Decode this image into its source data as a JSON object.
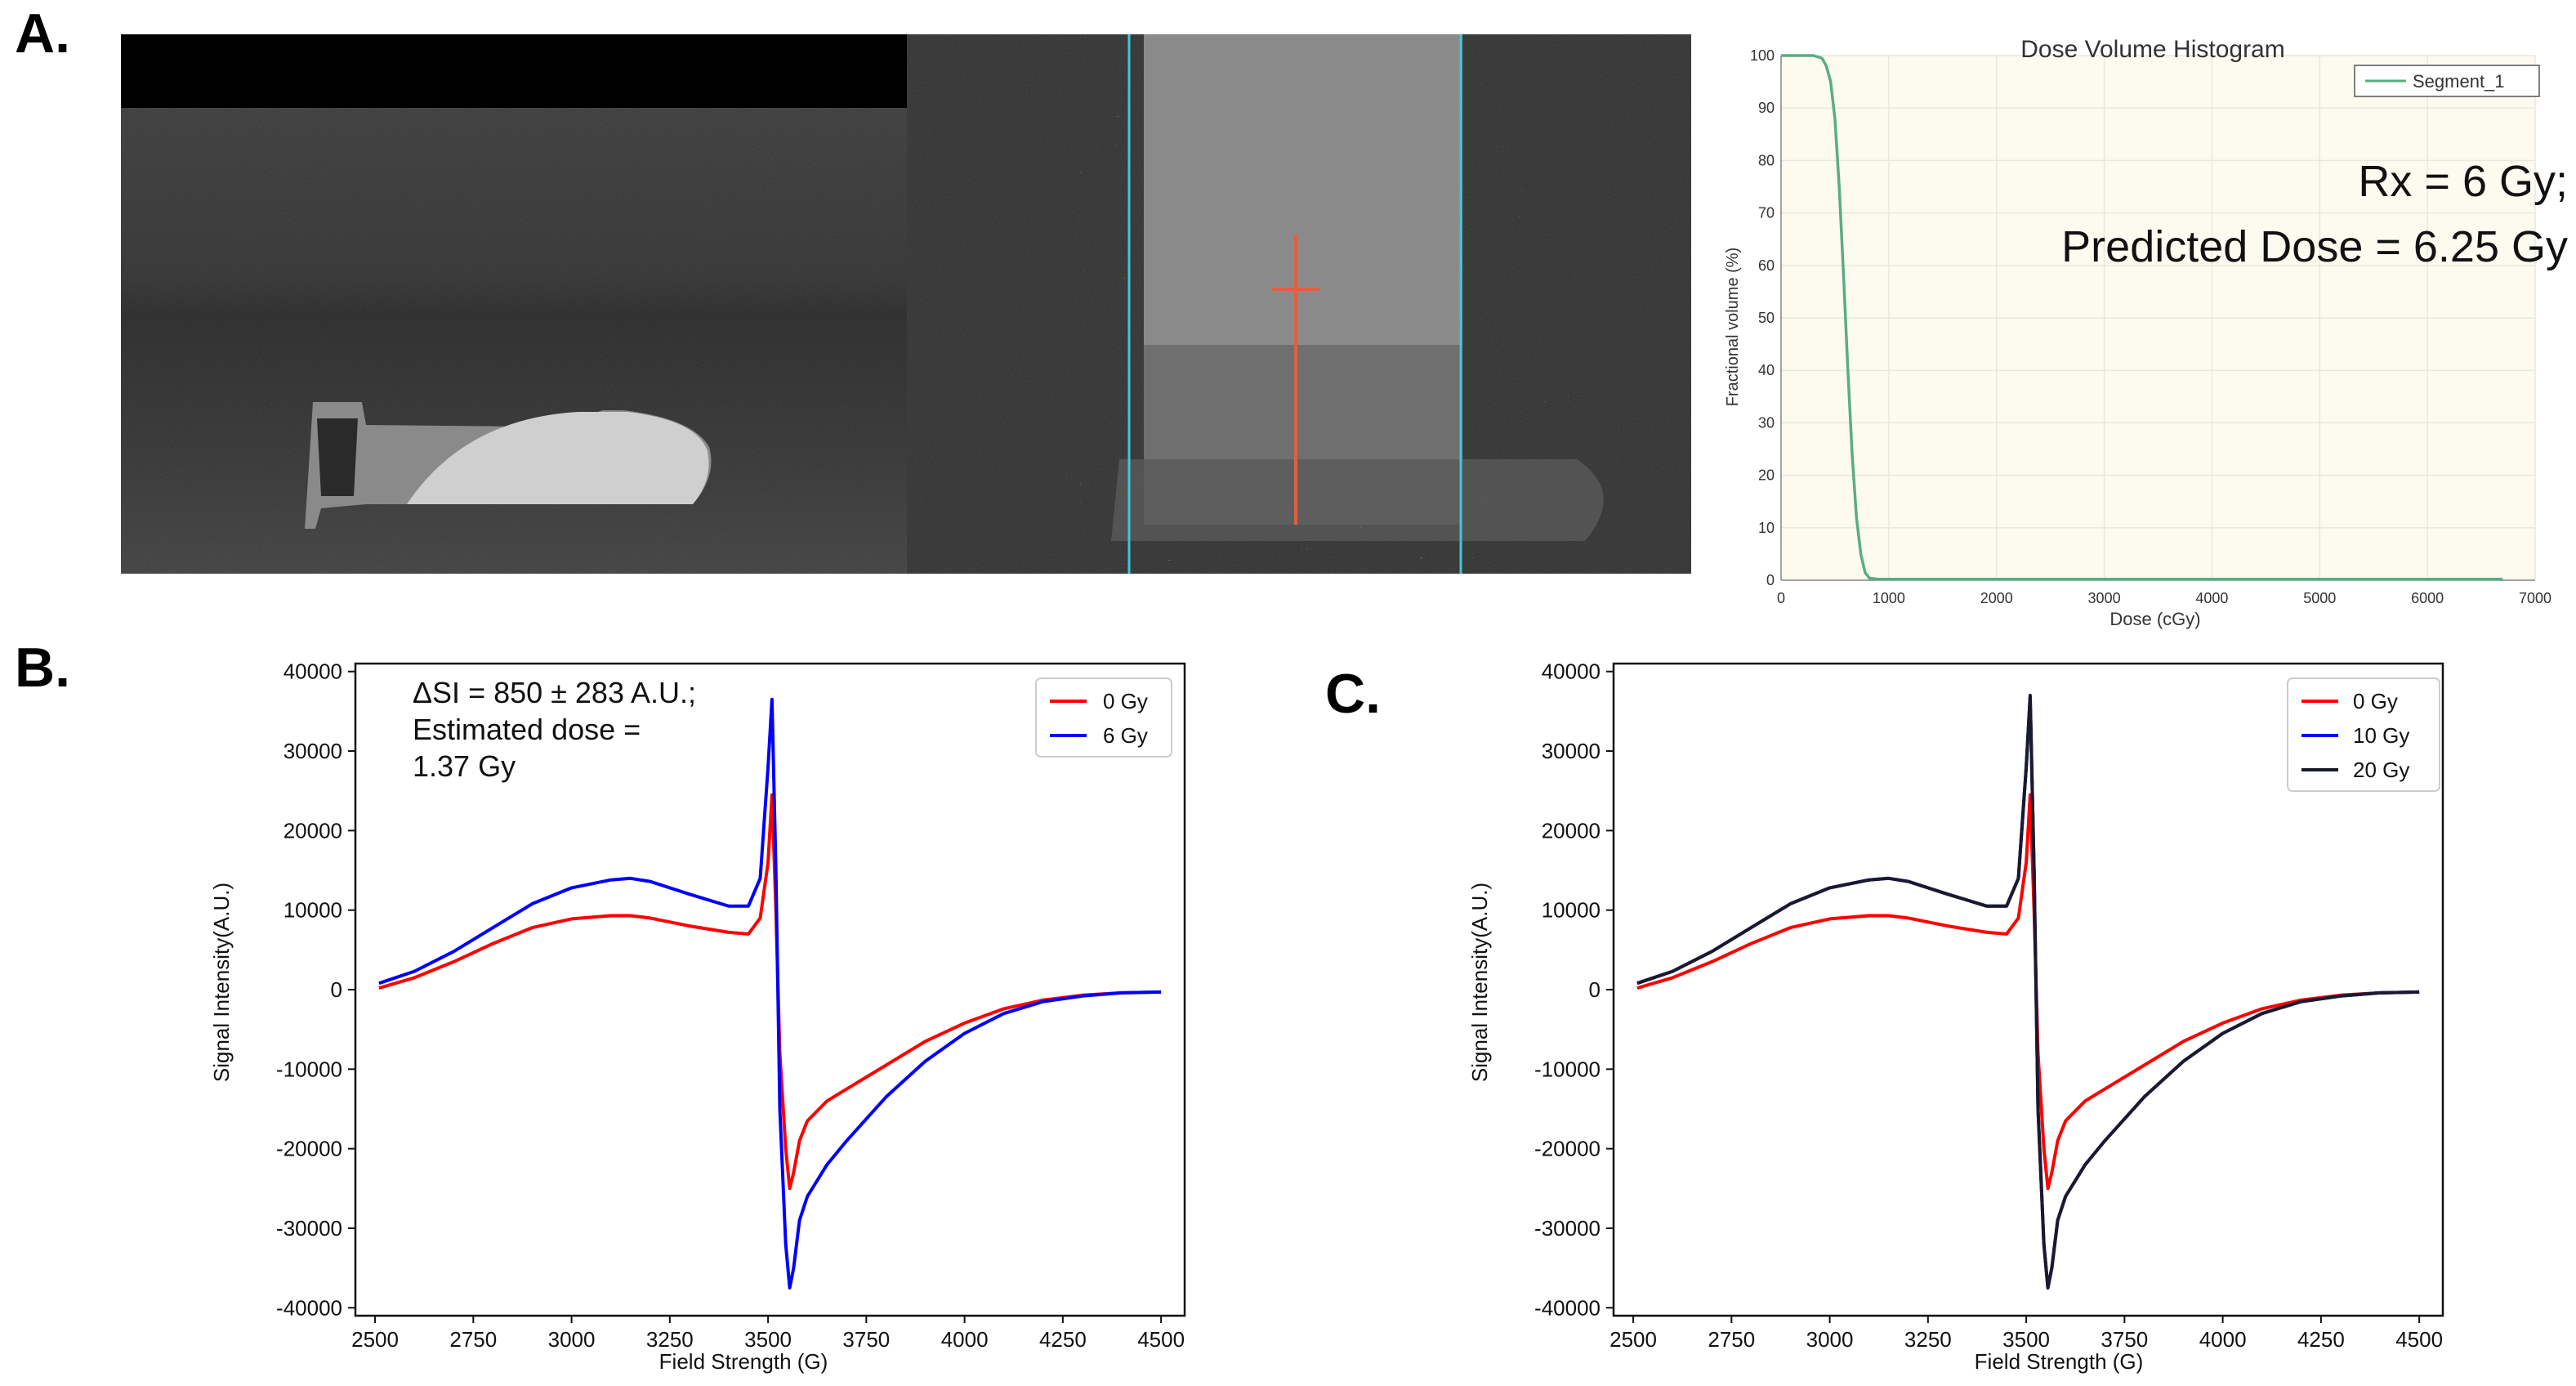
{
  "panels": {
    "a": "A.",
    "b": "B.",
    "c": "C."
  },
  "dvh": {
    "title": "Dose Volume Histogram",
    "xlabel": "Dose (cGy)",
    "ylabel": "Fractional volume (%)",
    "legend": "Segment_1",
    "note_line1": "Rx = 6 Gy;",
    "note_line2": "Predicted Dose = 6.25 Gy",
    "color": "#5aad82"
  },
  "mri": {
    "crosshair_color": "#e06040"
  },
  "chart_data": [
    {
      "id": "dvh",
      "type": "line",
      "title": "Dose Volume Histogram",
      "xlabel": "Dose (cGy)",
      "ylabel": "Fractional volume (%)",
      "xlim": [
        0,
        7000
      ],
      "ylim": [
        0,
        100
      ],
      "xticks": [
        0,
        1000,
        2000,
        3000,
        4000,
        5000,
        6000,
        7000
      ],
      "yticks": [
        0,
        10,
        20,
        30,
        40,
        50,
        60,
        70,
        80,
        90,
        100
      ],
      "series": [
        {
          "name": "Segment_1",
          "x": [
            0,
            300,
            380,
            420,
            460,
            500,
            540,
            580,
            620,
            660,
            700,
            740,
            780,
            820,
            900,
            1500,
            3000,
            5000,
            6700
          ],
          "y": [
            100,
            100,
            99.5,
            98,
            95,
            88,
            75,
            58,
            40,
            24,
            12,
            5,
            1.5,
            0.4,
            0.2,
            0.2,
            0.2,
            0.2,
            0.2
          ]
        }
      ]
    },
    {
      "id": "B",
      "type": "line",
      "xlabel": "Field Strength (G)",
      "ylabel": "Signal Intensity(A.U.)",
      "xlim": [
        2450,
        4560
      ],
      "ylim": [
        -41000,
        41000
      ],
      "xticks": [
        2500,
        2750,
        3000,
        3250,
        3500,
        3750,
        4000,
        4250,
        4500
      ],
      "yticks": [
        -40000,
        -30000,
        -20000,
        -10000,
        0,
        10000,
        20000,
        30000,
        40000
      ],
      "annotation": [
        "ΔSI  = 850 ± 283 A.U.;",
        "Estimated dose =",
        "1.37 Gy"
      ],
      "series": [
        {
          "name": "0 Gy",
          "color": "#ff0000",
          "x": [
            2510,
            2600,
            2700,
            2800,
            2900,
            3000,
            3100,
            3150,
            3200,
            3300,
            3400,
            3450,
            3480,
            3500,
            3510,
            3520,
            3530,
            3545,
            3555,
            3565,
            3580,
            3600,
            3650,
            3700,
            3800,
            3900,
            4000,
            4100,
            4200,
            4300,
            4400,
            4500
          ],
          "y": [
            200,
            1500,
            3500,
            5800,
            7800,
            8900,
            9300,
            9300,
            9000,
            8000,
            7200,
            7000,
            9000,
            16000,
            24500,
            10000,
            -8000,
            -20000,
            -25000,
            -23000,
            -19000,
            -16500,
            -14000,
            -12500,
            -9500,
            -6500,
            -4200,
            -2400,
            -1300,
            -700,
            -400,
            -300
          ]
        },
        {
          "name": "6 Gy",
          "color": "#0000ff",
          "x": [
            2510,
            2600,
            2700,
            2800,
            2900,
            3000,
            3100,
            3150,
            3200,
            3300,
            3400,
            3450,
            3480,
            3500,
            3510,
            3520,
            3530,
            3545,
            3555,
            3565,
            3580,
            3600,
            3650,
            3700,
            3800,
            3900,
            4000,
            4100,
            4200,
            4300,
            4400,
            4500
          ],
          "y": [
            800,
            2300,
            4800,
            7800,
            10800,
            12800,
            13800,
            14000,
            13600,
            12000,
            10500,
            10500,
            14000,
            28000,
            36500,
            15000,
            -15000,
            -32000,
            -37500,
            -35000,
            -29000,
            -26000,
            -22000,
            -19000,
            -13500,
            -9000,
            -5500,
            -3000,
            -1500,
            -800,
            -400,
            -300
          ]
        }
      ]
    },
    {
      "id": "C",
      "type": "line",
      "xlabel": "Field Strength (G)",
      "ylabel": "Signal Intensity(A.U.)",
      "xlim": [
        2450,
        4560
      ],
      "ylim": [
        -41000,
        41000
      ],
      "xticks": [
        2500,
        2750,
        3000,
        3250,
        3500,
        3750,
        4000,
        4250,
        4500
      ],
      "yticks": [
        -40000,
        -30000,
        -20000,
        -10000,
        0,
        10000,
        20000,
        30000,
        40000
      ],
      "series": [
        {
          "name": "0 Gy",
          "color": "#ff0000",
          "x": [
            2510,
            2600,
            2700,
            2800,
            2900,
            3000,
            3100,
            3150,
            3200,
            3300,
            3400,
            3450,
            3480,
            3500,
            3510,
            3520,
            3530,
            3545,
            3555,
            3565,
            3580,
            3600,
            3650,
            3700,
            3800,
            3900,
            4000,
            4100,
            4200,
            4300,
            4400,
            4500
          ],
          "y": [
            200,
            1500,
            3500,
            5800,
            7800,
            8900,
            9300,
            9300,
            9000,
            8000,
            7200,
            7000,
            9000,
            16000,
            24500,
            10000,
            -8000,
            -20000,
            -25000,
            -23000,
            -19000,
            -16500,
            -14000,
            -12500,
            -9500,
            -6500,
            -4200,
            -2400,
            -1300,
            -700,
            -400,
            -300
          ]
        },
        {
          "name": "10 Gy",
          "color": "#0000ff",
          "x": [
            2510,
            2600,
            2700,
            2800,
            2900,
            3000,
            3100,
            3150,
            3200,
            3300,
            3400,
            3450,
            3480,
            3500,
            3510,
            3520,
            3530,
            3545,
            3555,
            3565,
            3580,
            3600,
            3650,
            3700,
            3800,
            3900,
            4000,
            4100,
            4200,
            4300,
            4400,
            4500
          ],
          "y": [
            800,
            2300,
            4800,
            7800,
            10800,
            12800,
            13800,
            14000,
            13600,
            12000,
            10500,
            10500,
            14000,
            28000,
            36800,
            15000,
            -15000,
            -32000,
            -37500,
            -35000,
            -29000,
            -26000,
            -22000,
            -19000,
            -13500,
            -9000,
            -5500,
            -3000,
            -1500,
            -800,
            -400,
            -300
          ]
        },
        {
          "name": "20 Gy",
          "color": "#1a1a2e",
          "x": [
            2510,
            2600,
            2700,
            2800,
            2900,
            3000,
            3100,
            3150,
            3200,
            3300,
            3400,
            3450,
            3480,
            3500,
            3510,
            3520,
            3530,
            3545,
            3555,
            3565,
            3580,
            3600,
            3650,
            3700,
            3800,
            3900,
            4000,
            4100,
            4200,
            4300,
            4400,
            4500
          ],
          "y": [
            800,
            2300,
            4800,
            7800,
            10800,
            12800,
            13800,
            14000,
            13600,
            12000,
            10500,
            10500,
            14000,
            28000,
            37000,
            15000,
            -15000,
            -32000,
            -37500,
            -35000,
            -29000,
            -26000,
            -22000,
            -19000,
            -13500,
            -9000,
            -5500,
            -3000,
            -1500,
            -800,
            -400,
            -300
          ]
        }
      ]
    }
  ]
}
